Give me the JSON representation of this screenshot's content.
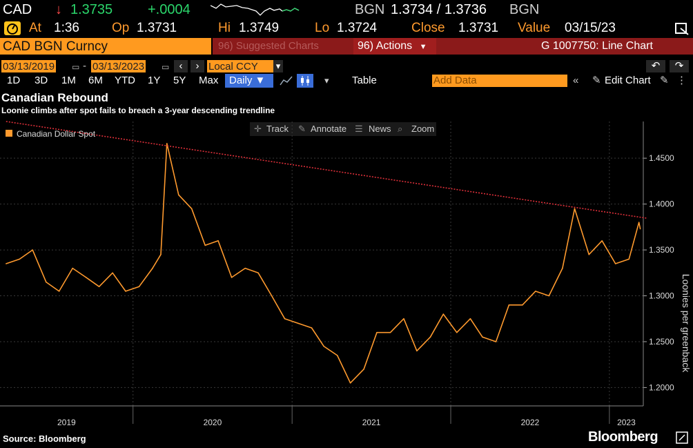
{
  "header": {
    "ticker": "CAD",
    "arrow": "↓",
    "last": "1.3735",
    "change": "+.0004",
    "bgn1": "BGN",
    "bid_ask": "1.3734 / 1.3736",
    "bgn2": "BGN"
  },
  "quote": {
    "at_label": "At",
    "at_time": "1:36",
    "op_label": "Op",
    "op": "1.3731",
    "hi_label": "Hi",
    "hi": "1.3749",
    "lo_label": "Lo",
    "lo": "1.3724",
    "close_label": "Close",
    "close": "1.3731",
    "value_label": "Value",
    "value_date": "03/15/23"
  },
  "toolbar": {
    "security": "CAD BGN Curncy",
    "suggested": "96) Suggested Charts",
    "actions": "96) Actions",
    "chart_id": "G 1007750: Line Chart"
  },
  "range": {
    "start": "03/13/2019",
    "end": "03/13/2023",
    "currency": "Local CCY"
  },
  "periods": [
    "1D",
    "3D",
    "1M",
    "6M",
    "YTD",
    "1Y",
    "5Y",
    "Max"
  ],
  "frequency": "Daily ▼",
  "table_label": "Table",
  "add_data_placeholder": "Add Data",
  "edit_chart_label": "Edit Chart",
  "chart_tools": [
    "Track",
    "Annotate",
    "News",
    "Zoom"
  ],
  "footer": {
    "source": "Source: Bloomberg",
    "logo": "Bloomberg"
  },
  "chart_data": {
    "type": "line",
    "title": "Canadian Rebound",
    "subtitle": "Loonie climbs after spot fails to breach a 3-year descending trendline",
    "ylabel": "Loonies per greenback",
    "ylim": [
      1.18,
      1.49
    ],
    "yticks": [
      "1.2000",
      "1.2500",
      "1.3000",
      "1.3500",
      "1.4000",
      "1.4500"
    ],
    "xticks": [
      "2019",
      "2020",
      "2021",
      "2022",
      "2023"
    ],
    "legend": "top-left",
    "series": [
      {
        "name": "Canadian Dollar Spot",
        "color": "#ff9a2e",
        "x": [
          "2019-03",
          "2019-04",
          "2019-05",
          "2019-06",
          "2019-07",
          "2019-08",
          "2019-09",
          "2019-10",
          "2019-11",
          "2019-12",
          "2020-01",
          "2020-02",
          "2020-03-05",
          "2020-03-19",
          "2020-04",
          "2020-05",
          "2020-06",
          "2020-07",
          "2020-08",
          "2020-09",
          "2020-10",
          "2020-11",
          "2020-12",
          "2021-01",
          "2021-02",
          "2021-03",
          "2021-04",
          "2021-05",
          "2021-06",
          "2021-07",
          "2021-08",
          "2021-09",
          "2021-10",
          "2021-11",
          "2021-12",
          "2022-01",
          "2022-02",
          "2022-03",
          "2022-04",
          "2022-05",
          "2022-06",
          "2022-07",
          "2022-08",
          "2022-09",
          "2022-10-13",
          "2022-11",
          "2022-12",
          "2023-01",
          "2023-02",
          "2023-03-10",
          "2023-03-13"
        ],
        "y": [
          1.335,
          1.34,
          1.35,
          1.315,
          1.305,
          1.33,
          1.32,
          1.31,
          1.325,
          1.305,
          1.31,
          1.33,
          1.345,
          1.466,
          1.41,
          1.395,
          1.355,
          1.36,
          1.32,
          1.33,
          1.325,
          1.3,
          1.275,
          1.27,
          1.265,
          1.245,
          1.235,
          1.205,
          1.22,
          1.26,
          1.26,
          1.275,
          1.24,
          1.255,
          1.28,
          1.26,
          1.275,
          1.255,
          1.25,
          1.29,
          1.29,
          1.305,
          1.3,
          1.33,
          1.395,
          1.345,
          1.36,
          1.335,
          1.34,
          1.38,
          1.373
        ]
      }
    ],
    "trendline": {
      "name": "3-year descending trendline",
      "color": "#e0303a",
      "x": [
        "2019-03",
        "2023-03-13"
      ],
      "y": [
        1.49,
        1.383
      ]
    }
  }
}
